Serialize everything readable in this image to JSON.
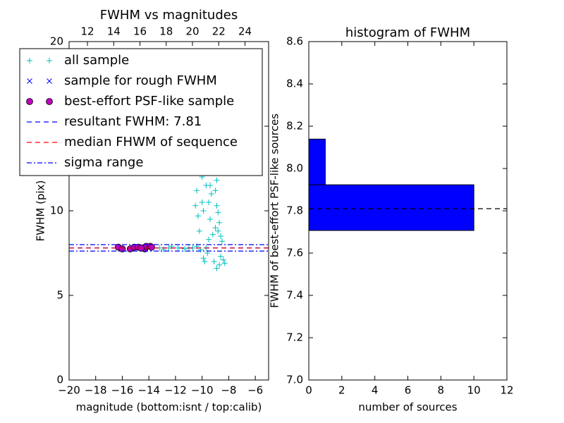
{
  "chart_data": [
    {
      "type": "scatter",
      "title": "FWHM vs magnitudes",
      "xlabel": "magnitude (bottom:isnt / top:calib)",
      "ylabel": "FWHM (pix)",
      "xlim": [
        -20,
        -5
      ],
      "ylim": [
        0,
        20
      ],
      "xticks": [
        {
          "value": -20,
          "label": "−20"
        },
        {
          "value": -18,
          "label": "−18"
        },
        {
          "value": -16,
          "label": "−16"
        },
        {
          "value": -14,
          "label": "−14"
        },
        {
          "value": -12,
          "label": "−12"
        },
        {
          "value": -10,
          "label": "−10"
        },
        {
          "value": -8,
          "label": "−8"
        },
        {
          "value": -6,
          "label": "−6"
        }
      ],
      "yticks": [
        0,
        5,
        10,
        15,
        20
      ],
      "x2lim": [
        10.6,
        25.8
      ],
      "x2ticks": [
        12,
        14,
        16,
        18,
        20,
        22,
        24
      ],
      "legend": "upper left",
      "series": [
        {
          "name": "all sample",
          "kind": "points",
          "marker": "plus",
          "color": "#00bfbf",
          "x": [
            -13.2,
            -12.9,
            -12.5,
            -12.3,
            -11.8,
            -11.3,
            -10.7,
            -10.4,
            -10.1,
            -9.9,
            -9.8,
            -9.6,
            -9.5,
            -9.4,
            -9.3,
            -9.2,
            -9.8,
            -10.1,
            -10.0,
            -9.7,
            -9.6,
            -9.0,
            -8.9,
            -8.8,
            -8.7,
            -8.6,
            -8.5,
            -8.6,
            -8.7,
            -8.9,
            -9.1,
            -8.4,
            -8.3,
            -8.8,
            -9.0,
            -9.2,
            -10.2,
            -10.3,
            -10.0,
            -9.9,
            -9.5,
            -9.3,
            -9.1,
            -8.8,
            -8.9,
            -9.4,
            -10.4,
            -10.5,
            -11.0,
            -9.7
          ],
          "values": [
            7.8,
            7.7,
            7.8,
            7.9,
            7.8,
            7.75,
            7.8,
            7.9,
            7.7,
            7.2,
            7.0,
            7.5,
            8.3,
            9.5,
            11.0,
            12.4,
            12.3,
            13.0,
            12.0,
            11.5,
            13.6,
            11.2,
            10.3,
            9.9,
            9.3,
            8.5,
            8.2,
            7.3,
            6.8,
            6.6,
            7.0,
            7.1,
            6.9,
            8.8,
            9.0,
            8.6,
            8.8,
            9.7,
            10.5,
            10.0,
            10.5,
            12.9,
            13.2,
            12.7,
            11.8,
            11.5,
            11.2,
            10.3,
            7.8,
            7.8
          ]
        },
        {
          "name": "sample for rough FWHM",
          "kind": "points",
          "marker": "cross",
          "color": "#0000ff",
          "x": [],
          "values": []
        },
        {
          "name": "best-effort PSF-like sample",
          "kind": "points",
          "marker": "circle",
          "color": "#bf00bf",
          "x": [
            -16.3,
            -16.0,
            -15.4,
            -15.1,
            -14.8,
            -14.5,
            -14.3,
            -14.2,
            -13.9,
            -13.8,
            -14.6
          ],
          "values": [
            7.85,
            7.75,
            7.75,
            7.85,
            7.85,
            7.8,
            7.75,
            7.9,
            7.9,
            7.85,
            7.8
          ]
        },
        {
          "name": "resultant FWHM: 7.81",
          "kind": "hline",
          "style": "dashed",
          "color": "#0000ff",
          "values": [
            7.81
          ]
        },
        {
          "name": "median FHWM of sequence",
          "kind": "hline",
          "style": "dashed",
          "color": "#ff0000",
          "values": [
            7.8
          ]
        },
        {
          "name": "sigma range",
          "kind": "hline",
          "style": "dashdot",
          "color": "#0000ff",
          "values": [
            7.62,
            8.0
          ]
        }
      ]
    },
    {
      "type": "histogram",
      "orientation": "horizontal",
      "title": "histogram of FWHM",
      "xlabel": "number of sources",
      "ylabel": "FWHM of best-effort PSF-like sources",
      "xlim": [
        0,
        12
      ],
      "ylim": [
        7.0,
        8.6
      ],
      "xticks": [
        0,
        2,
        4,
        6,
        8,
        10,
        12
      ],
      "yticks": [
        {
          "value": 7.0,
          "label": "7.0"
        },
        7.2,
        7.4,
        7.6,
        7.8,
        {
          "value": 8.0,
          "label": "8.0"
        },
        8.2,
        8.4,
        8.6
      ],
      "bins": [
        7.707,
        7.923,
        8.139
      ],
      "values": [
        10,
        1
      ],
      "color": "#0000ff",
      "reference_line": 7.81
    }
  ]
}
